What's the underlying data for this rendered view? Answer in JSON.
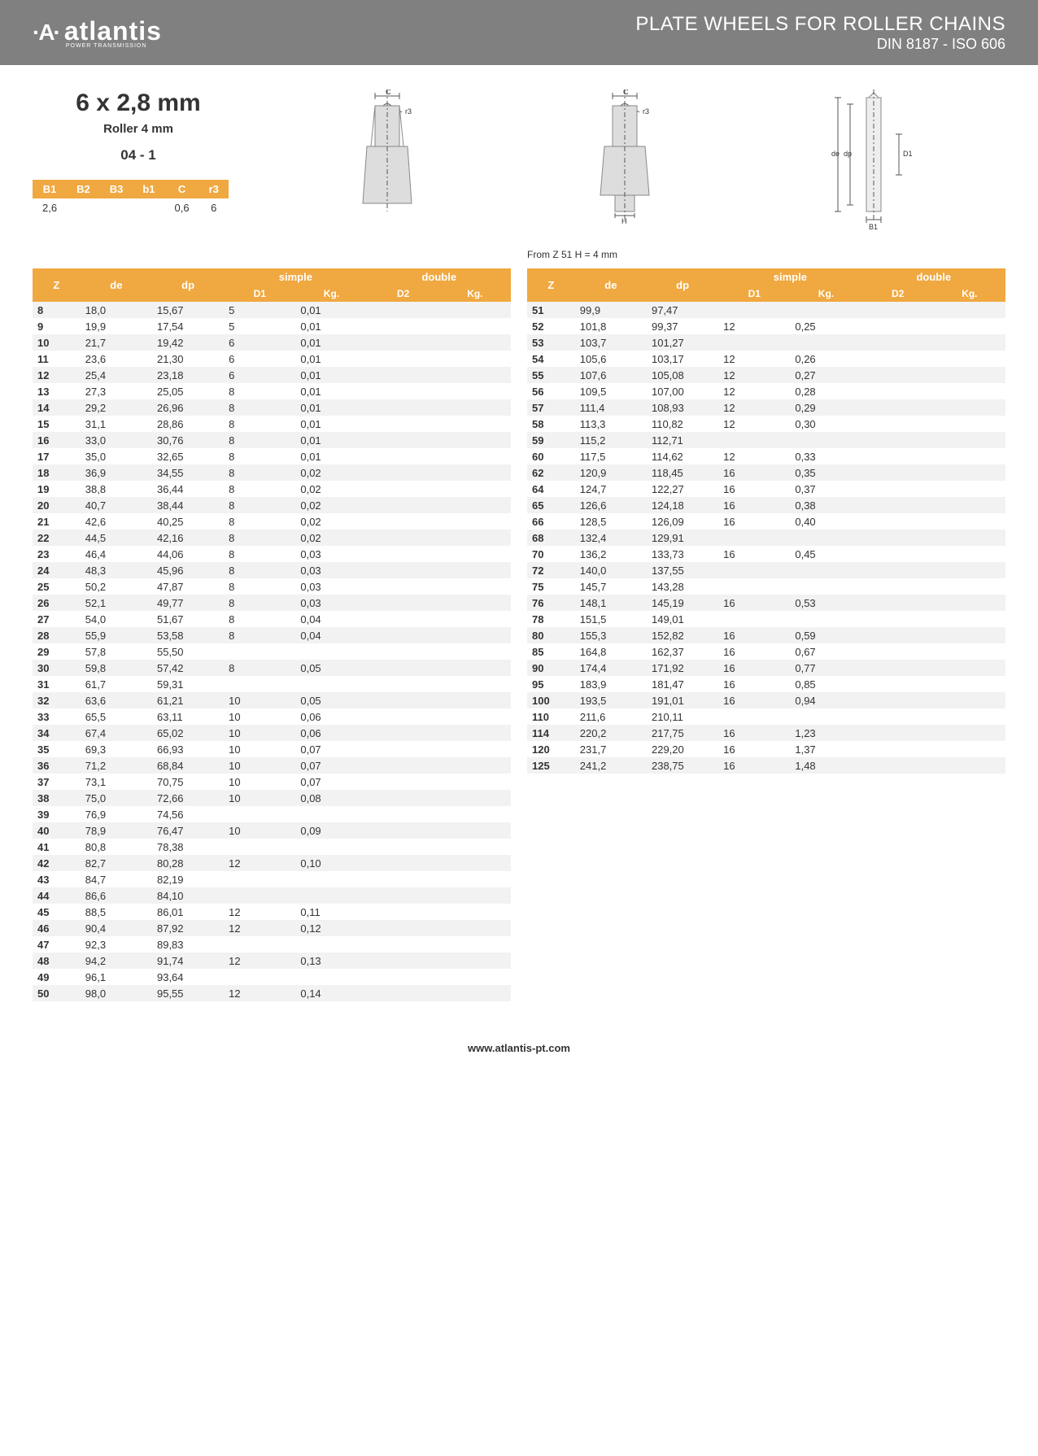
{
  "header": {
    "logo_text": "atlantis",
    "logo_sub": "POWER TRANSMISSION",
    "title": "PLATE WHEELS FOR ROLLER CHAINS",
    "subtitle": "DIN 8187 - ISO 606"
  },
  "spec": {
    "main": "6 x 2,8 mm",
    "roller": "Roller 4 mm",
    "code": "04 - 1"
  },
  "small_headers": [
    "B1",
    "B2",
    "B3",
    "b1",
    "C",
    "r3"
  ],
  "small_values": [
    "2,6",
    "",
    "",
    "",
    "0,6",
    "6"
  ],
  "note": "From Z 51 H = 4 mm",
  "col_headers": {
    "z": "Z",
    "de": "de",
    "dp": "dp",
    "simple": "simple",
    "d1": "D1",
    "kg1": "Kg.",
    "double": "double",
    "d2": "D2",
    "kg2": "Kg."
  },
  "left_rows": [
    [
      "8",
      "18,0",
      "15,67",
      "5",
      "0,01",
      "",
      ""
    ],
    [
      "9",
      "19,9",
      "17,54",
      "5",
      "0,01",
      "",
      ""
    ],
    [
      "10",
      "21,7",
      "19,42",
      "6",
      "0,01",
      "",
      ""
    ],
    [
      "11",
      "23,6",
      "21,30",
      "6",
      "0,01",
      "",
      ""
    ],
    [
      "12",
      "25,4",
      "23,18",
      "6",
      "0,01",
      "",
      ""
    ],
    [
      "13",
      "27,3",
      "25,05",
      "8",
      "0,01",
      "",
      ""
    ],
    [
      "14",
      "29,2",
      "26,96",
      "8",
      "0,01",
      "",
      ""
    ],
    [
      "15",
      "31,1",
      "28,86",
      "8",
      "0,01",
      "",
      ""
    ],
    [
      "16",
      "33,0",
      "30,76",
      "8",
      "0,01",
      "",
      ""
    ],
    [
      "17",
      "35,0",
      "32,65",
      "8",
      "0,01",
      "",
      ""
    ],
    [
      "18",
      "36,9",
      "34,55",
      "8",
      "0,02",
      "",
      ""
    ],
    [
      "19",
      "38,8",
      "36,44",
      "8",
      "0,02",
      "",
      ""
    ],
    [
      "20",
      "40,7",
      "38,44",
      "8",
      "0,02",
      "",
      ""
    ],
    [
      "21",
      "42,6",
      "40,25",
      "8",
      "0,02",
      "",
      ""
    ],
    [
      "22",
      "44,5",
      "42,16",
      "8",
      "0,02",
      "",
      ""
    ],
    [
      "23",
      "46,4",
      "44,06",
      "8",
      "0,03",
      "",
      ""
    ],
    [
      "24",
      "48,3",
      "45,96",
      "8",
      "0,03",
      "",
      ""
    ],
    [
      "25",
      "50,2",
      "47,87",
      "8",
      "0,03",
      "",
      ""
    ],
    [
      "26",
      "52,1",
      "49,77",
      "8",
      "0,03",
      "",
      ""
    ],
    [
      "27",
      "54,0",
      "51,67",
      "8",
      "0,04",
      "",
      ""
    ],
    [
      "28",
      "55,9",
      "53,58",
      "8",
      "0,04",
      "",
      ""
    ],
    [
      "29",
      "57,8",
      "55,50",
      "",
      "",
      "",
      ""
    ],
    [
      "30",
      "59,8",
      "57,42",
      "8",
      "0,05",
      "",
      ""
    ],
    [
      "31",
      "61,7",
      "59,31",
      "",
      "",
      "",
      ""
    ],
    [
      "32",
      "63,6",
      "61,21",
      "10",
      "0,05",
      "",
      ""
    ],
    [
      "33",
      "65,5",
      "63,11",
      "10",
      "0,06",
      "",
      ""
    ],
    [
      "34",
      "67,4",
      "65,02",
      "10",
      "0,06",
      "",
      ""
    ],
    [
      "35",
      "69,3",
      "66,93",
      "10",
      "0,07",
      "",
      ""
    ],
    [
      "36",
      "71,2",
      "68,84",
      "10",
      "0,07",
      "",
      ""
    ],
    [
      "37",
      "73,1",
      "70,75",
      "10",
      "0,07",
      "",
      ""
    ],
    [
      "38",
      "75,0",
      "72,66",
      "10",
      "0,08",
      "",
      ""
    ],
    [
      "39",
      "76,9",
      "74,56",
      "",
      "",
      "",
      ""
    ],
    [
      "40",
      "78,9",
      "76,47",
      "10",
      "0,09",
      "",
      ""
    ],
    [
      "41",
      "80,8",
      "78,38",
      "",
      "",
      "",
      ""
    ],
    [
      "42",
      "82,7",
      "80,28",
      "12",
      "0,10",
      "",
      ""
    ],
    [
      "43",
      "84,7",
      "82,19",
      "",
      "",
      "",
      ""
    ],
    [
      "44",
      "86,6",
      "84,10",
      "",
      "",
      "",
      ""
    ],
    [
      "45",
      "88,5",
      "86,01",
      "12",
      "0,11",
      "",
      ""
    ],
    [
      "46",
      "90,4",
      "87,92",
      "12",
      "0,12",
      "",
      ""
    ],
    [
      "47",
      "92,3",
      "89,83",
      "",
      "",
      "",
      ""
    ],
    [
      "48",
      "94,2",
      "91,74",
      "12",
      "0,13",
      "",
      ""
    ],
    [
      "49",
      "96,1",
      "93,64",
      "",
      "",
      "",
      ""
    ],
    [
      "50",
      "98,0",
      "95,55",
      "12",
      "0,14",
      "",
      ""
    ]
  ],
  "right_rows": [
    [
      "51",
      "99,9",
      "97,47",
      "",
      "",
      "",
      ""
    ],
    [
      "52",
      "101,8",
      "99,37",
      "12",
      "0,25",
      "",
      ""
    ],
    [
      "53",
      "103,7",
      "101,27",
      "",
      "",
      "",
      ""
    ],
    [
      "54",
      "105,6",
      "103,17",
      "12",
      "0,26",
      "",
      ""
    ],
    [
      "55",
      "107,6",
      "105,08",
      "12",
      "0,27",
      "",
      ""
    ],
    [
      "56",
      "109,5",
      "107,00",
      "12",
      "0,28",
      "",
      ""
    ],
    [
      "57",
      "111,4",
      "108,93",
      "12",
      "0,29",
      "",
      ""
    ],
    [
      "58",
      "113,3",
      "110,82",
      "12",
      "0,30",
      "",
      ""
    ],
    [
      "59",
      "115,2",
      "112,71",
      "",
      "",
      "",
      ""
    ],
    [
      "60",
      "117,5",
      "114,62",
      "12",
      "0,33",
      "",
      ""
    ],
    [
      "62",
      "120,9",
      "118,45",
      "16",
      "0,35",
      "",
      ""
    ],
    [
      "64",
      "124,7",
      "122,27",
      "16",
      "0,37",
      "",
      ""
    ],
    [
      "65",
      "126,6",
      "124,18",
      "16",
      "0,38",
      "",
      ""
    ],
    [
      "66",
      "128,5",
      "126,09",
      "16",
      "0,40",
      "",
      ""
    ],
    [
      "68",
      "132,4",
      "129,91",
      "",
      "",
      "",
      ""
    ],
    [
      "70",
      "136,2",
      "133,73",
      "16",
      "0,45",
      "",
      ""
    ],
    [
      "72",
      "140,0",
      "137,55",
      "",
      "",
      "",
      ""
    ],
    [
      "75",
      "145,7",
      "143,28",
      "",
      "",
      "",
      ""
    ],
    [
      "76",
      "148,1",
      "145,19",
      "16",
      "0,53",
      "",
      ""
    ],
    [
      "78",
      "151,5",
      "149,01",
      "",
      "",
      "",
      ""
    ],
    [
      "80",
      "155,3",
      "152,82",
      "16",
      "0,59",
      "",
      ""
    ],
    [
      "85",
      "164,8",
      "162,37",
      "16",
      "0,67",
      "",
      ""
    ],
    [
      "90",
      "174,4",
      "171,92",
      "16",
      "0,77",
      "",
      ""
    ],
    [
      "95",
      "183,9",
      "181,47",
      "16",
      "0,85",
      "",
      ""
    ],
    [
      "100",
      "193,5",
      "191,01",
      "16",
      "0,94",
      "",
      ""
    ],
    [
      "110",
      "211,6",
      "210,11",
      "",
      "",
      "",
      ""
    ],
    [
      "114",
      "220,2",
      "217,75",
      "16",
      "1,23",
      "",
      ""
    ],
    [
      "120",
      "231,7",
      "229,20",
      "16",
      "1,37",
      "",
      ""
    ],
    [
      "125",
      "241,2",
      "238,75",
      "16",
      "1,48",
      "",
      ""
    ]
  ],
  "footer": "www.atlantis-pt.com",
  "colors": {
    "header_bg": "#808080",
    "accent": "#f0a840",
    "row_alt": "#f2f2f2"
  }
}
